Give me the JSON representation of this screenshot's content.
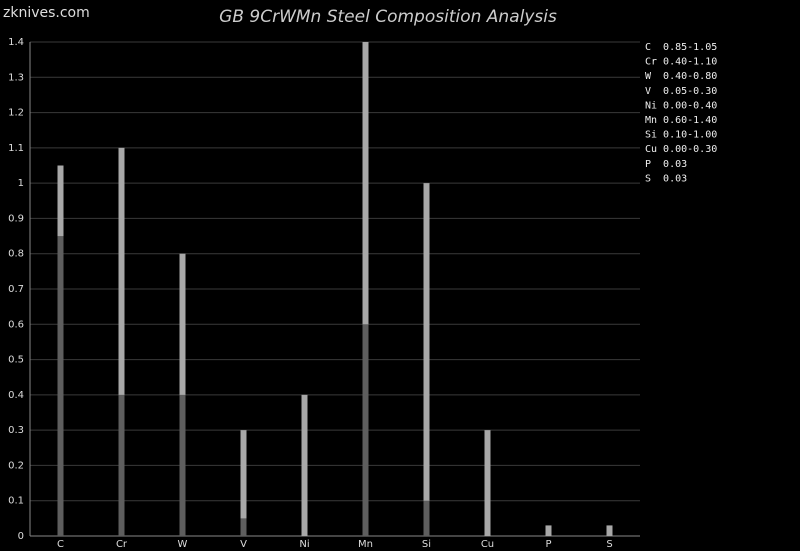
{
  "watermark": "zknives.com",
  "chart_data": {
    "type": "range-bar",
    "title": "GB 9CrWMn Steel Composition Analysis",
    "categories": [
      "C",
      "Cr",
      "W",
      "V",
      "Ni",
      "Mn",
      "Si",
      "Cu",
      "P",
      "S"
    ],
    "series": [
      {
        "name": "max",
        "color": "#a8a8a8",
        "values": [
          1.05,
          1.1,
          0.8,
          0.3,
          0.4,
          1.4,
          1.0,
          0.3,
          0.03,
          0.03
        ]
      },
      {
        "name": "min",
        "color": "#5e5e5e",
        "values": [
          0.85,
          0.4,
          0.4,
          0.05,
          0.0,
          0.6,
          0.1,
          0.0,
          null,
          null
        ]
      }
    ],
    "legend": [
      "C  0.85-1.05",
      "Cr 0.40-1.10",
      "W  0.40-0.80",
      "V  0.05-0.30",
      "Ni 0.00-0.40",
      "Mn 0.60-1.40",
      "Si 0.10-1.00",
      "Cu 0.00-0.30",
      "P  0.03",
      "S  0.03"
    ],
    "ylim": [
      0,
      1.4
    ],
    "yticks": [
      0,
      0.1,
      0.2,
      0.3,
      0.4,
      0.5,
      0.6,
      0.7,
      0.8,
      0.9,
      1,
      1.1,
      1.2,
      1.3,
      1.4
    ],
    "grid": true
  }
}
